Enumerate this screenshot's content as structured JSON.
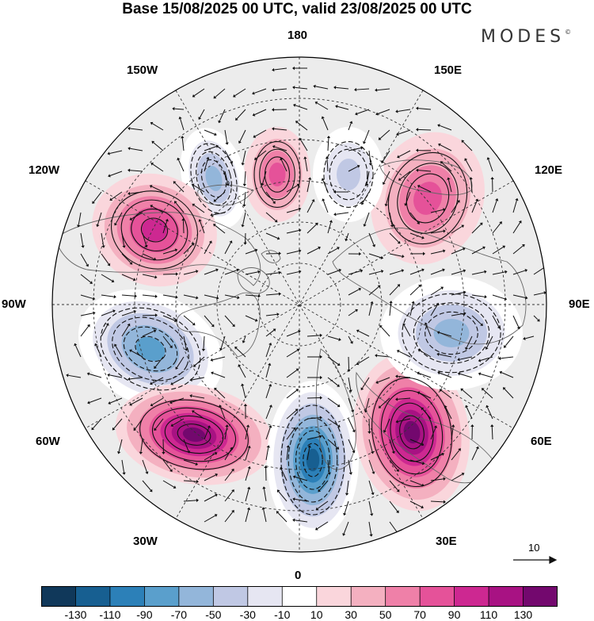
{
  "title": "Base 15/08/2025 00 UTC, valid 23/08/2025 00 UTC",
  "brand": {
    "name": "MODES",
    "mark": "©"
  },
  "longitude_labels": {
    "top": "180",
    "bottom": "0",
    "left": "90W",
    "right": "90E",
    "upper_left_outer": "150W",
    "upper_left_inner": "120W",
    "upper_right_outer": "150E",
    "upper_right_inner": "120E",
    "lower_left_inner": "60W",
    "lower_left_outer": "30W",
    "lower_right_inner": "60E",
    "lower_right_outer": "30E"
  },
  "vector_scale": {
    "label": "10"
  },
  "colorbar": {
    "colors": [
      "#10385a",
      "#175f91",
      "#2c80b8",
      "#5a9fcc",
      "#93b6da",
      "#c0c8e4",
      "#e6e6f2",
      "#ffffff",
      "#fad6dc",
      "#f4b0c0",
      "#ef80a8",
      "#e55299",
      "#cd2891",
      "#a81283",
      "#73086e"
    ],
    "tick_labels": [
      "-130",
      "-110",
      "-90",
      "-70",
      "-50",
      "-30",
      "-10",
      "10",
      "30",
      "50",
      "70",
      "90",
      "110",
      "130"
    ]
  },
  "anomaly_centers": [
    {
      "name": "north-america-east-low",
      "sign": "negative",
      "level": -70
    },
    {
      "name": "north-atlantic-high",
      "sign": "positive",
      "level": 110
    },
    {
      "name": "western-europe-low",
      "sign": "negative",
      "level": -110
    },
    {
      "name": "eastern-europe-high",
      "sign": "positive",
      "level": 110
    },
    {
      "name": "central-siberia-low",
      "sign": "negative",
      "level": -50
    },
    {
      "name": "east-siberia-high",
      "sign": "positive",
      "level": 50
    },
    {
      "name": "chukotka-low",
      "sign": "negative",
      "level": -30
    },
    {
      "name": "beaufort-high",
      "sign": "positive",
      "level": 50
    },
    {
      "name": "alaska-low",
      "sign": "negative",
      "level": -50
    },
    {
      "name": "canada-high",
      "sign": "positive",
      "level": 70
    }
  ]
}
